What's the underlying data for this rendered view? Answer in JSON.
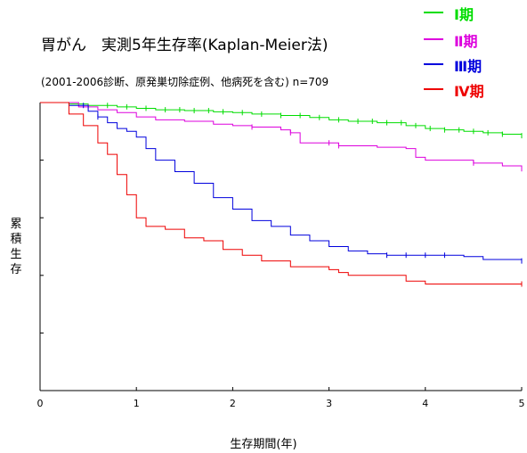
{
  "title": "胃がん　実測5年生存率(Kaplan-Meier法)",
  "subtitle": "(2001-2006診断、原発巣切除症例、他病死を含む)  n=709",
  "chart_data": {
    "type": "line",
    "step": true,
    "xlabel": "生存期間(年)",
    "ylabel": "累積生存",
    "xlim": [
      0,
      5
    ],
    "ylim": [
      0,
      1
    ],
    "xticks": [
      "0",
      "1",
      "2",
      "3",
      "4",
      "5"
    ],
    "y_ticks_labeled": false,
    "grid": false,
    "legend_position": "top-right",
    "series": [
      {
        "name": "Ⅰ期",
        "color": "#00dd00",
        "points": [
          [
            0,
            1.0
          ],
          [
            0.2,
            1.0
          ],
          [
            0.3,
            0.995
          ],
          [
            0.5,
            0.99
          ],
          [
            0.8,
            0.985
          ],
          [
            1.0,
            0.98
          ],
          [
            1.2,
            0.975
          ],
          [
            1.5,
            0.972
          ],
          [
            1.8,
            0.968
          ],
          [
            2.0,
            0.965
          ],
          [
            2.2,
            0.96
          ],
          [
            2.5,
            0.955
          ],
          [
            2.8,
            0.948
          ],
          [
            3.0,
            0.94
          ],
          [
            3.2,
            0.935
          ],
          [
            3.5,
            0.93
          ],
          [
            3.8,
            0.92
          ],
          [
            4.0,
            0.91
          ],
          [
            4.2,
            0.905
          ],
          [
            4.4,
            0.9
          ],
          [
            4.6,
            0.895
          ],
          [
            4.8,
            0.89
          ],
          [
            5.0,
            0.885
          ]
        ],
        "censors": [
          0.7,
          0.9,
          1.1,
          1.3,
          1.45,
          1.6,
          1.75,
          1.9,
          2.1,
          2.3,
          2.5,
          2.7,
          2.9,
          3.1,
          3.3,
          3.45,
          3.6,
          3.75,
          3.9,
          4.05,
          4.2,
          4.35,
          4.5,
          4.65,
          4.8,
          5.0
        ]
      },
      {
        "name": "Ⅱ期",
        "color": "#dd00dd",
        "points": [
          [
            0,
            1.0
          ],
          [
            0.2,
            1.0
          ],
          [
            0.4,
            0.985
          ],
          [
            0.6,
            0.975
          ],
          [
            0.8,
            0.965
          ],
          [
            1.0,
            0.95
          ],
          [
            1.2,
            0.94
          ],
          [
            1.5,
            0.935
          ],
          [
            1.8,
            0.925
          ],
          [
            2.0,
            0.92
          ],
          [
            2.2,
            0.915
          ],
          [
            2.5,
            0.905
          ],
          [
            2.6,
            0.895
          ],
          [
            2.7,
            0.86
          ],
          [
            3.0,
            0.86
          ],
          [
            3.1,
            0.85
          ],
          [
            3.5,
            0.845
          ],
          [
            3.8,
            0.84
          ],
          [
            3.9,
            0.81
          ],
          [
            4.0,
            0.8
          ],
          [
            4.5,
            0.79
          ],
          [
            4.8,
            0.78
          ],
          [
            5.0,
            0.77
          ]
        ],
        "censors": [
          0.5,
          2.2,
          2.6,
          3.0,
          3.1,
          4.5,
          5.0
        ]
      },
      {
        "name": "Ⅲ期",
        "color": "#0000dd",
        "points": [
          [
            0,
            1.0
          ],
          [
            0.2,
            1.0
          ],
          [
            0.3,
            0.99
          ],
          [
            0.5,
            0.97
          ],
          [
            0.6,
            0.95
          ],
          [
            0.7,
            0.93
          ],
          [
            0.8,
            0.91
          ],
          [
            0.9,
            0.9
          ],
          [
            1.0,
            0.88
          ],
          [
            1.1,
            0.84
          ],
          [
            1.2,
            0.8
          ],
          [
            1.4,
            0.76
          ],
          [
            1.6,
            0.72
          ],
          [
            1.8,
            0.67
          ],
          [
            2.0,
            0.63
          ],
          [
            2.2,
            0.59
          ],
          [
            2.4,
            0.57
          ],
          [
            2.6,
            0.54
          ],
          [
            2.8,
            0.52
          ],
          [
            3.0,
            0.5
          ],
          [
            3.2,
            0.485
          ],
          [
            3.4,
            0.475
          ],
          [
            3.6,
            0.47
          ],
          [
            3.8,
            0.47
          ],
          [
            4.0,
            0.47
          ],
          [
            4.4,
            0.465
          ],
          [
            4.6,
            0.455
          ],
          [
            5.0,
            0.45
          ]
        ],
        "censors": [
          0.45,
          0.6,
          3.6,
          3.8,
          4.0,
          4.2,
          5.0
        ]
      },
      {
        "name": "Ⅳ期",
        "color": "#ee0000",
        "points": [
          [
            0,
            1.0
          ],
          [
            0.15,
            1.0
          ],
          [
            0.3,
            0.96
          ],
          [
            0.45,
            0.92
          ],
          [
            0.6,
            0.86
          ],
          [
            0.7,
            0.82
          ],
          [
            0.8,
            0.75
          ],
          [
            0.9,
            0.68
          ],
          [
            1.0,
            0.6
          ],
          [
            1.1,
            0.57
          ],
          [
            1.3,
            0.56
          ],
          [
            1.5,
            0.53
          ],
          [
            1.7,
            0.52
          ],
          [
            1.9,
            0.49
          ],
          [
            2.1,
            0.47
          ],
          [
            2.3,
            0.45
          ],
          [
            2.6,
            0.43
          ],
          [
            3.0,
            0.42
          ],
          [
            3.1,
            0.41
          ],
          [
            3.2,
            0.4
          ],
          [
            3.5,
            0.4
          ],
          [
            3.8,
            0.38
          ],
          [
            4.0,
            0.37
          ],
          [
            4.5,
            0.37
          ],
          [
            5.0,
            0.37
          ]
        ],
        "censors": [
          5.0
        ]
      }
    ]
  }
}
